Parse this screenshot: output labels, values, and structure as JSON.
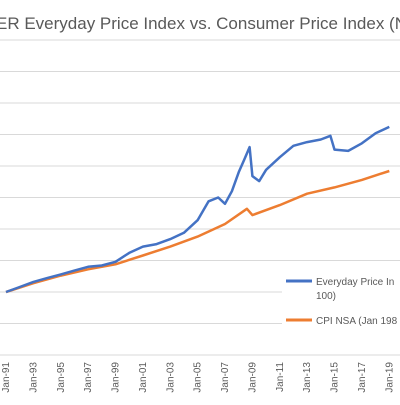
{
  "chart_data": {
    "type": "line",
    "title": "ER Everyday Price Index vs. Consumer Price Index (NS",
    "x_tick_labels": [
      "Jan-91",
      "Jan-93",
      "Jan-95",
      "Jan-97",
      "Jan-99",
      "Jan-01",
      "Jan-03",
      "Jan-05",
      "Jan-07",
      "Jan-09",
      "Jan-11",
      "Jan-13",
      "Jan-15",
      "Jan-17",
      "Jan-19"
    ],
    "xlim": [
      1991.0,
      2019.2
    ],
    "ylim": [
      50,
      300
    ],
    "grid": true,
    "legend_position": "bottom-right",
    "series": [
      {
        "name": "Everyday Price In",
        "name_continued": "100)",
        "color": "#4472c4",
        "points": [
          [
            1991.0,
            100
          ],
          [
            1992.0,
            104
          ],
          [
            1993.0,
            108
          ],
          [
            1994.0,
            111
          ],
          [
            1995.0,
            114
          ],
          [
            1996.0,
            117
          ],
          [
            1997.0,
            120
          ],
          [
            1998.0,
            121
          ],
          [
            1999.0,
            124
          ],
          [
            2000.0,
            131
          ],
          [
            2001.0,
            136
          ],
          [
            2002.0,
            138
          ],
          [
            2003.0,
            142
          ],
          [
            2004.0,
            147
          ],
          [
            2005.0,
            157
          ],
          [
            2005.8,
            172
          ],
          [
            2006.5,
            175
          ],
          [
            2007.0,
            170
          ],
          [
            2007.5,
            180
          ],
          [
            2008.0,
            195
          ],
          [
            2008.4,
            205
          ],
          [
            2008.8,
            215
          ],
          [
            2009.0,
            192
          ],
          [
            2009.5,
            188
          ],
          [
            2010.0,
            197
          ],
          [
            2011.0,
            207
          ],
          [
            2012.0,
            216
          ],
          [
            2013.0,
            219
          ],
          [
            2014.0,
            221
          ],
          [
            2014.7,
            224
          ],
          [
            2015.0,
            213
          ],
          [
            2016.0,
            212
          ],
          [
            2017.0,
            218
          ],
          [
            2018.0,
            226
          ],
          [
            2019.0,
            231
          ]
        ]
      },
      {
        "name": "CPI NSA (Jan 198",
        "color": "#ed7d31",
        "points": [
          [
            1991.0,
            100
          ],
          [
            1993.0,
            107
          ],
          [
            1995.0,
            113
          ],
          [
            1997.0,
            118
          ],
          [
            1999.0,
            122
          ],
          [
            2001.0,
            129
          ],
          [
            2003.0,
            136
          ],
          [
            2005.0,
            144
          ],
          [
            2007.0,
            154
          ],
          [
            2008.6,
            166
          ],
          [
            2009.0,
            161
          ],
          [
            2011.0,
            169
          ],
          [
            2013.0,
            178
          ],
          [
            2015.0,
            183
          ],
          [
            2017.0,
            189
          ],
          [
            2019.0,
            196
          ]
        ]
      }
    ]
  }
}
